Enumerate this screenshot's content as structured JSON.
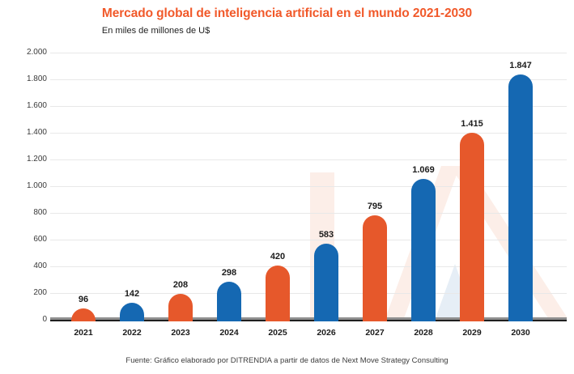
{
  "header": {
    "title": "Mercado global de inteligencia artificial en el mundo 2021-2030",
    "subtitle": "En miles de millones de U$"
  },
  "footer": {
    "source": "Fuente: Gráfico elaborado por DITRENDIA a partir de datos de Next Move Strategy Consulting"
  },
  "colors": {
    "title": "#F1592A",
    "bar_orange": "#E6582B",
    "bar_blue": "#1568B2",
    "grid": "#E8E8E8",
    "axis_dark": "#1F1F1F",
    "axis_shadow": "#8F8F8F",
    "watermark_pink": "#FCEEE8",
    "watermark_blue": "#E6EEF6"
  },
  "chart_data": {
    "type": "bar",
    "title": "Mercado global de inteligencia artificial en el mundo 2021-2030",
    "units_note": "En miles de millones de U$",
    "categories": [
      "2021",
      "2022",
      "2023",
      "2024",
      "2025",
      "2026",
      "2027",
      "2028",
      "2029",
      "2030"
    ],
    "values": [
      96,
      142,
      208,
      298,
      420,
      583,
      795,
      1069,
      1415,
      1847
    ],
    "value_labels": [
      "96",
      "142",
      "208",
      "298",
      "420",
      "583",
      "795",
      "1.069",
      "1.415",
      "1.847"
    ],
    "bar_colors": [
      "orange",
      "blue",
      "orange",
      "blue",
      "orange",
      "blue",
      "orange",
      "blue",
      "orange",
      "blue"
    ],
    "xlabel": "",
    "ylabel": "",
    "ylim": [
      0,
      2000
    ],
    "y_tick_values": [
      2000,
      1800,
      1600,
      1400,
      1200,
      1000,
      800,
      600,
      400,
      200,
      0
    ],
    "y_tick_labels": [
      "2.000",
      "1.800",
      "1.600",
      "1.400",
      "1.200",
      "1.000",
      "800",
      "600",
      "400",
      "200",
      "0"
    ],
    "grid": "horizontal",
    "legend": "none",
    "watermark": "IA letters, faint pink and light-blue shapes behind bars"
  }
}
